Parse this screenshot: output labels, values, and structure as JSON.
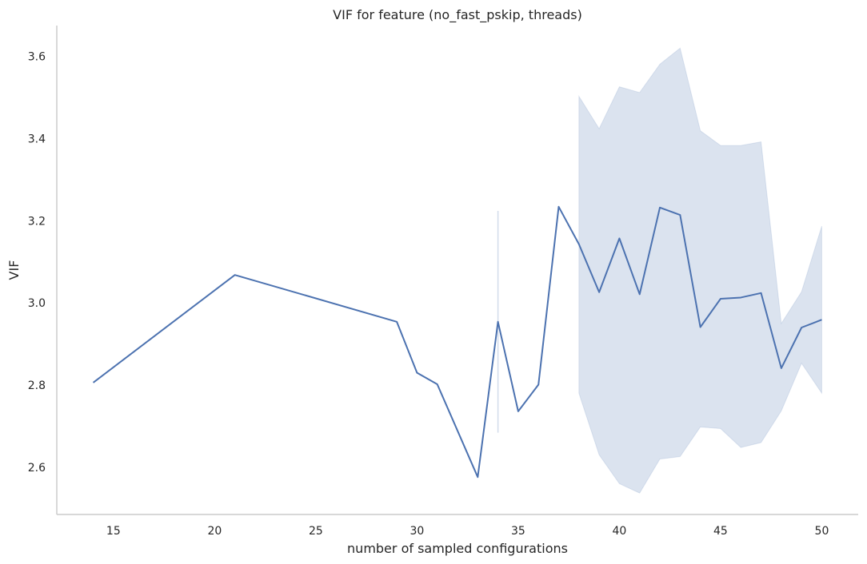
{
  "chart_data": {
    "type": "line",
    "title": "VIF for feature (no_fast_pskip, threads)",
    "xlabel": "number of sampled configurations",
    "ylabel": "VIF",
    "xlim": [
      12.2,
      51.8
    ],
    "ylim": [
      2.485,
      3.675
    ],
    "xticks": [
      15,
      20,
      25,
      30,
      35,
      40,
      45,
      50
    ],
    "yticks": [
      2.6,
      2.8,
      3.0,
      3.2,
      3.4,
      3.6
    ],
    "grid": false,
    "colors": {
      "line": "#4c72b0",
      "band": "#4c72b0"
    },
    "series": [
      {
        "x": [
          14,
          21,
          29,
          30,
          31,
          33,
          34,
          35,
          36,
          37,
          38,
          39,
          40,
          41,
          42,
          43,
          44,
          45,
          46,
          47,
          48,
          49,
          50
        ],
        "y": [
          2.806,
          3.068,
          2.954,
          2.83,
          2.802,
          2.576,
          2.954,
          2.736,
          2.801,
          3.234,
          3.143,
          3.026,
          3.157,
          3.021,
          3.232,
          3.214,
          2.941,
          3.01,
          3.013,
          3.024,
          2.841,
          2.94,
          2.959
        ],
        "ci_lower": [
          2.806,
          3.068,
          2.954,
          2.83,
          2.802,
          2.576,
          2.684,
          2.736,
          2.801,
          3.234,
          2.78,
          2.63,
          2.56,
          2.537,
          2.62,
          2.626,
          2.698,
          2.694,
          2.648,
          2.66,
          2.737,
          2.853,
          2.78
        ],
        "ci_upper": [
          2.806,
          3.068,
          2.954,
          2.83,
          2.802,
          2.576,
          3.224,
          2.736,
          2.801,
          3.234,
          3.503,
          3.424,
          3.526,
          3.512,
          3.581,
          3.62,
          3.419,
          3.383,
          3.383,
          3.392,
          2.95,
          3.027,
          3.187
        ]
      }
    ]
  }
}
